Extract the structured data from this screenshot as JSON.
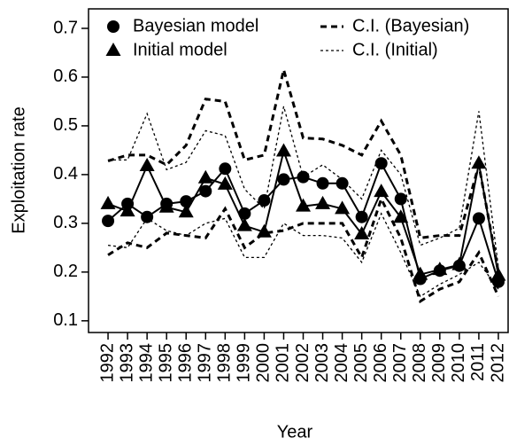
{
  "chart_data": {
    "type": "line",
    "x_label": "Year",
    "y_label": "Exploitation rate",
    "x": [
      1992,
      1993,
      1994,
      1995,
      1996,
      1997,
      1998,
      1999,
      2000,
      2001,
      2002,
      2003,
      2004,
      2005,
      2006,
      2007,
      2008,
      2009,
      2010,
      2011,
      2012
    ],
    "xlim": [
      1991,
      2012.5
    ],
    "ylim": [
      0.076,
      0.74
    ],
    "yticks": [
      0.1,
      0.2,
      0.3,
      0.4,
      0.5,
      0.6,
      0.7
    ],
    "legend": "top-left",
    "series": [
      {
        "name": "Bayesian model",
        "marker": "circle",
        "color": "#000000",
        "values": [
          0.305,
          0.34,
          0.313,
          0.34,
          0.345,
          0.366,
          0.412,
          0.32,
          0.347,
          0.39,
          0.395,
          0.382,
          0.382,
          0.313,
          0.423,
          0.35,
          0.186,
          0.203,
          0.213,
          0.31,
          0.18
        ],
        "ci_name": "C.I. (Bayesian)",
        "ci_style": "thick-dashed",
        "ci_upper": [
          0.428,
          0.44,
          0.44,
          0.42,
          0.46,
          0.555,
          0.55,
          0.43,
          0.44,
          0.615,
          0.475,
          0.473,
          0.46,
          0.44,
          0.51,
          0.44,
          0.27,
          0.275,
          0.275,
          0.42,
          0.2
        ],
        "ci_lower": [
          0.235,
          0.26,
          0.25,
          0.28,
          0.275,
          0.27,
          0.33,
          0.25,
          0.28,
          0.285,
          0.3,
          0.3,
          0.3,
          0.23,
          0.35,
          0.27,
          0.14,
          0.165,
          0.18,
          0.24,
          0.15
        ]
      },
      {
        "name": "Initial model",
        "marker": "triangle",
        "color": "#000000",
        "values": [
          0.34,
          0.325,
          0.418,
          0.333,
          0.323,
          0.393,
          0.38,
          0.295,
          0.282,
          0.448,
          0.335,
          0.34,
          0.33,
          0.278,
          0.365,
          0.312,
          0.195,
          0.205,
          0.215,
          0.423,
          0.193
        ],
        "ci_name": "C.I. (Initial)",
        "ci_style": "thin-dotted",
        "ci_upper": [
          0.43,
          0.43,
          0.525,
          0.41,
          0.425,
          0.49,
          0.48,
          0.37,
          0.33,
          0.54,
          0.395,
          0.42,
          0.39,
          0.35,
          0.45,
          0.4,
          0.255,
          0.27,
          0.29,
          0.53,
          0.21
        ],
        "ci_lower": [
          0.255,
          0.25,
          0.31,
          0.285,
          0.275,
          0.3,
          0.31,
          0.23,
          0.23,
          0.3,
          0.275,
          0.275,
          0.27,
          0.22,
          0.32,
          0.24,
          0.15,
          0.175,
          0.195,
          0.22,
          0.165
        ]
      }
    ]
  }
}
